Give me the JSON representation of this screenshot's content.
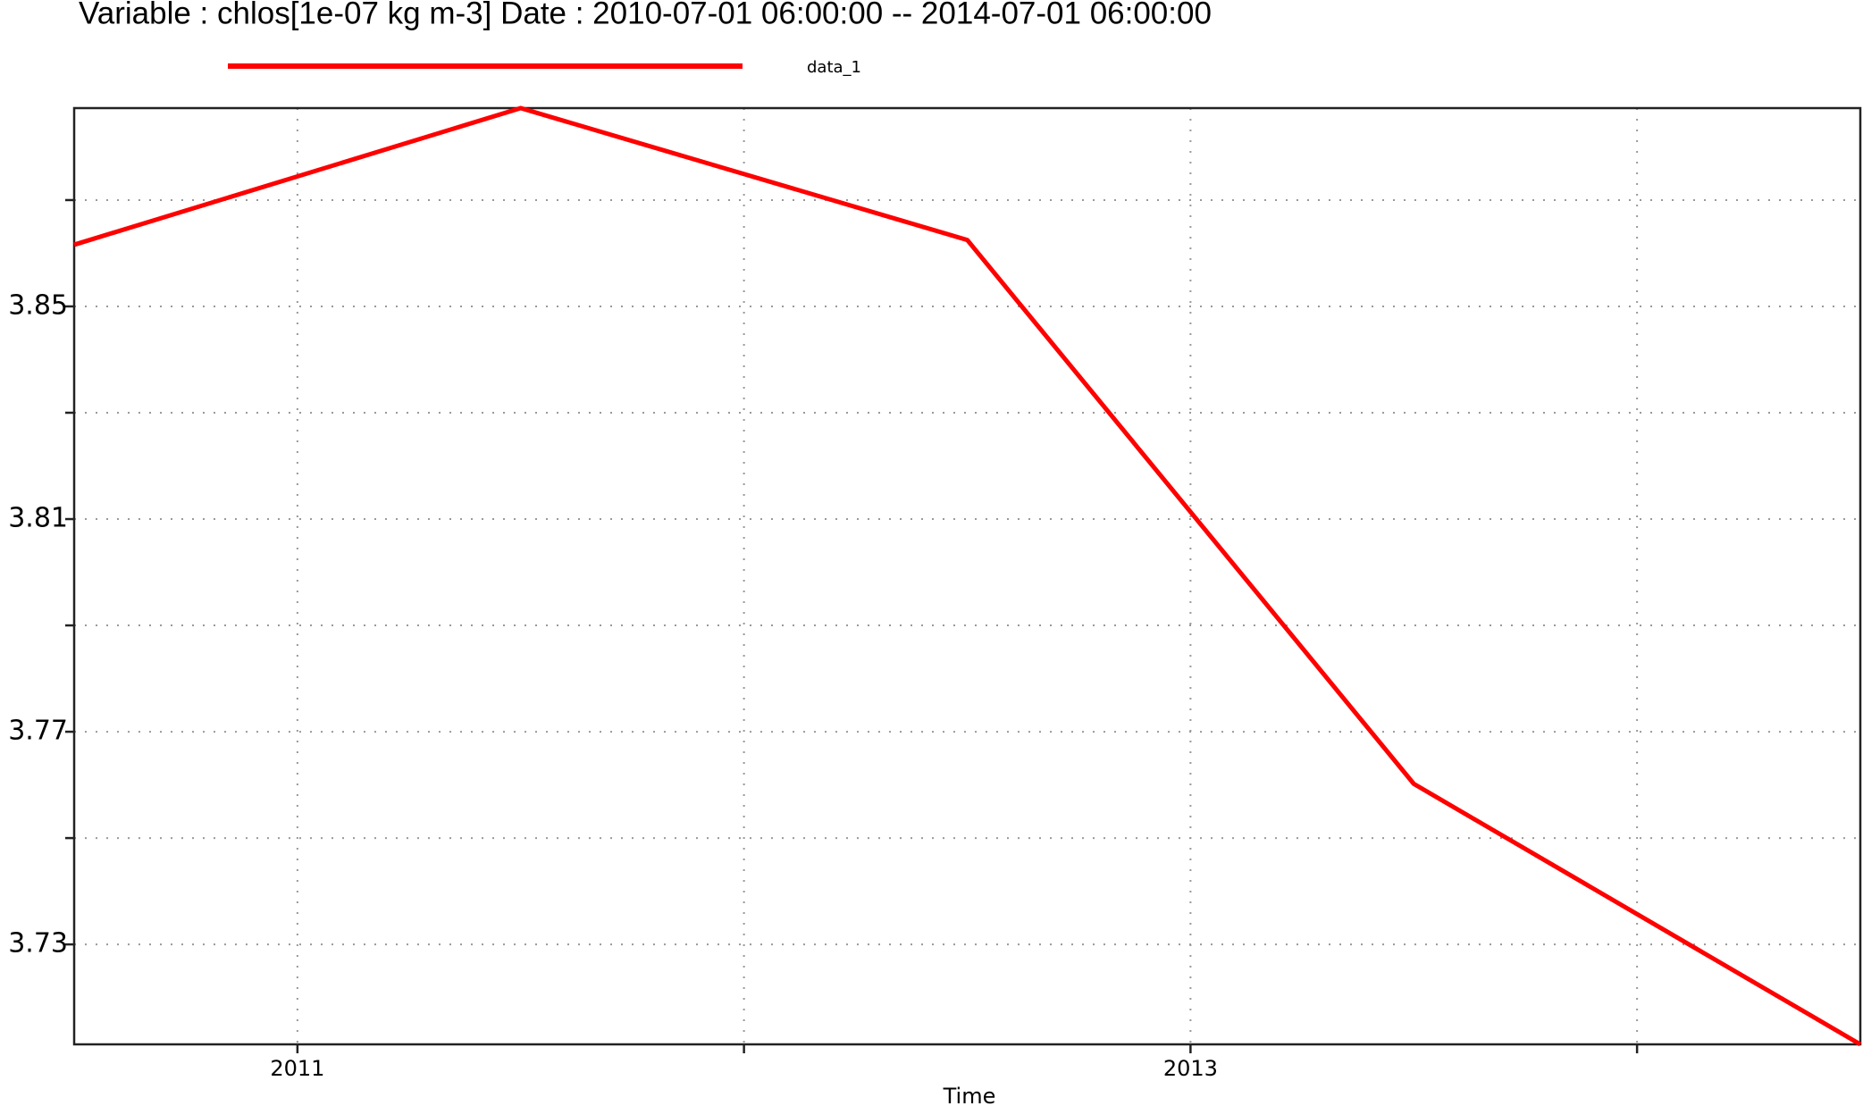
{
  "chart_data": {
    "type": "line",
    "title": "Variable : chlos[1e-07 kg m-3]  Date :  2010-07-01 06:00:00 -- 2014-07-01 06:00:00",
    "x_label": "Time",
    "x": [
      2010.5,
      2011.5,
      2012.5,
      2013.5,
      2014.5
    ],
    "series": [
      {
        "name": "data_1",
        "color": "#ff0000",
        "values": [
          3.8616,
          3.8873,
          3.8625,
          3.7602,
          3.7112
        ]
      }
    ],
    "xlim": [
      2010.5,
      2014.5
    ],
    "xticks": [
      2011,
      2013
    ],
    "xticks_minor": [
      2012,
      2014
    ],
    "ylim": [
      3.7112,
      3.8873
    ],
    "yticks": [
      3.73,
      3.77,
      3.81,
      3.85
    ],
    "yticks_minor": [
      3.75,
      3.79,
      3.83,
      3.87
    ],
    "grid": true
  }
}
